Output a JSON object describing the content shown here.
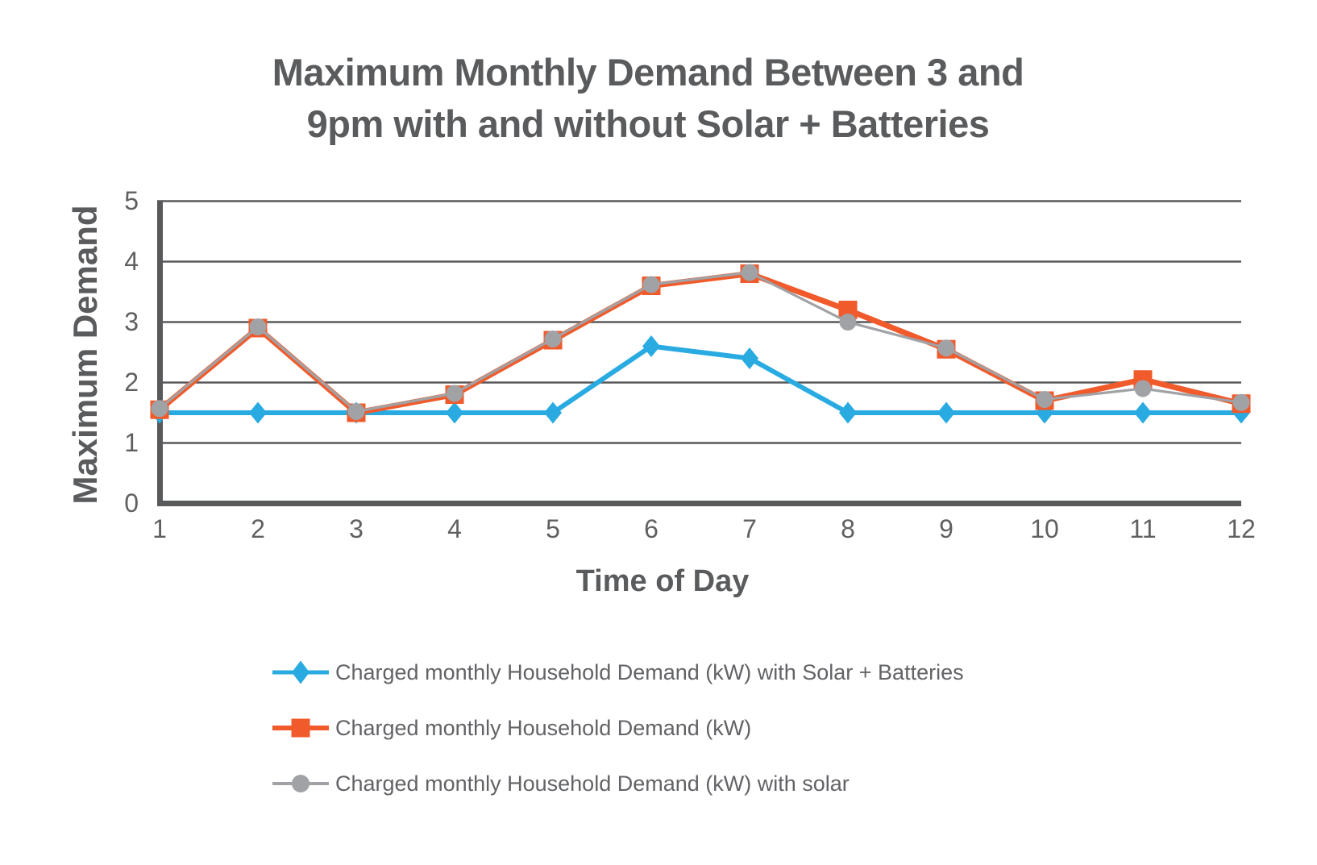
{
  "chart_data": {
    "type": "line",
    "title": "Maximum Monthly Demand Between 3 and 9pm with and without Solar + Batteries",
    "title_lines": [
      "Maximum Monthly Demand Between 3 and",
      "9pm with and without Solar + Batteries"
    ],
    "xlabel": "Time of Day",
    "ylabel": "Maximum Demand",
    "x": [
      1,
      2,
      3,
      4,
      5,
      6,
      7,
      8,
      9,
      10,
      11,
      12
    ],
    "xlim": [
      1,
      12
    ],
    "ylim": [
      0,
      5
    ],
    "yticks": [
      0,
      1,
      2,
      3,
      4,
      5
    ],
    "grid": "horizontal",
    "legend_position": "bottom-left",
    "axis_color": "#58595b",
    "series": [
      {
        "name": "Charged monthly Household Demand (kW) with Solar + Batteries",
        "color": "#29ABE2",
        "marker": "diamond",
        "values": [
          1.5,
          1.5,
          1.5,
          1.5,
          1.5,
          2.6,
          2.4,
          1.5,
          1.5,
          1.5,
          1.5,
          1.5
        ]
      },
      {
        "name": "Charged monthly Household Demand (kW)",
        "color": "#F15A2B",
        "marker": "square",
        "values": [
          1.55,
          2.9,
          1.5,
          1.8,
          2.7,
          3.6,
          3.8,
          3.2,
          2.55,
          1.7,
          2.05,
          1.65
        ]
      },
      {
        "name": "Charged monthly Household Demand (kW) with solar",
        "color": "#A0A2A5",
        "marker": "circle",
        "values": [
          1.57,
          2.92,
          1.52,
          1.82,
          2.72,
          3.62,
          3.82,
          3.0,
          2.57,
          1.72,
          1.9,
          1.67
        ]
      }
    ]
  }
}
